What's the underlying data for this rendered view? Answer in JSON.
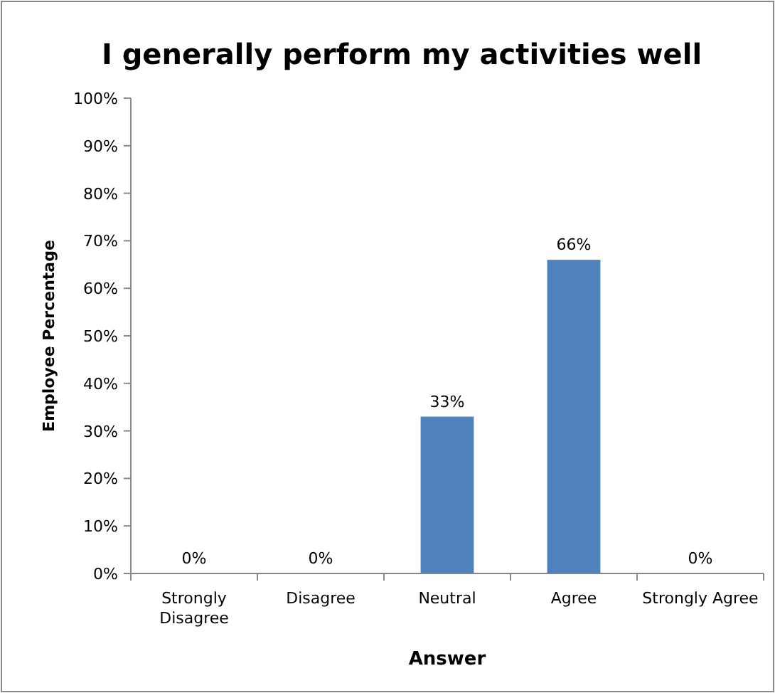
{
  "chart_data": {
    "type": "bar",
    "title": "I generally perform my activities well",
    "xlabel": "Answer",
    "ylabel": "Employee Percentage",
    "categories": [
      "Strongly Disagree",
      "Disagree",
      "Neutral",
      "Agree",
      "Strongly Agree"
    ],
    "values": [
      0,
      0,
      33,
      66,
      0
    ],
    "color": "#4f81bd",
    "value_labels": [
      "0%",
      "0%",
      "33%",
      "66%",
      "0%"
    ],
    "ylim": [
      0,
      100
    ],
    "yticks": [
      {
        "value": 0,
        "label": "0%"
      },
      {
        "value": 10,
        "label": "10%"
      },
      {
        "value": 20,
        "label": "20%"
      },
      {
        "value": 30,
        "label": "30%"
      },
      {
        "value": 40,
        "label": "40%"
      },
      {
        "value": 50,
        "label": "50%"
      },
      {
        "value": 60,
        "label": "60%"
      },
      {
        "value": 70,
        "label": "70%"
      },
      {
        "value": 80,
        "label": "80%"
      },
      {
        "value": 90,
        "label": "90%"
      },
      {
        "value": 100,
        "label": "100%"
      }
    ],
    "grid": false
  }
}
